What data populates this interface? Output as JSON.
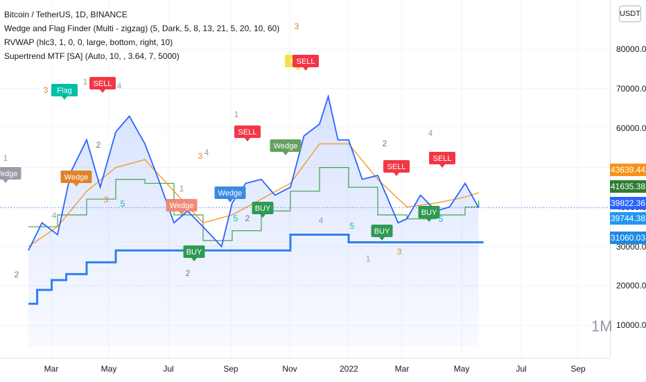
{
  "legend": {
    "symbol": "Bitcoin / TetherUS, 1D, BINANCE",
    "indicator1": "Wedge and Flag Finder (Multi - zigzag) (5, Dark, 5, 8, 13, 21, 5, 20, 10, 60)",
    "indicator2": "RVWAP (hlc3, 1, 0, 0, large, bottom, right, 10)",
    "indicator3": "Supertrend MTF [SA] (Auto, 10, , 3.64, 7, 5000)"
  },
  "currency": "USDT",
  "watermark": "1M",
  "price_tags": [
    {
      "label": "43639.44",
      "color": "#f7931a"
    },
    {
      "label": "41635.38",
      "color": "#2e7d32"
    },
    {
      "label": "39822.36",
      "color": "#2962ff"
    },
    {
      "label": "39744.38",
      "color": "#2196f3"
    },
    {
      "label": "31060.03",
      "color": "#1e88e5"
    }
  ],
  "chart_data": {
    "type": "line",
    "title": "Bitcoin / TetherUS, 1D, BINANCE",
    "ylabel": "USDT",
    "ylim": [
      2000,
      84000
    ],
    "y_ticks": [
      10000,
      20000,
      30000,
      40000,
      50000,
      60000,
      70000,
      80000
    ],
    "y_tick_labels": [
      "10000.00",
      "20000.00",
      "30000.00",
      "40000.00",
      "50000.00",
      "60000.00",
      "70000.00",
      "80000.00"
    ],
    "x_ticks": [
      "Mar",
      "May",
      "Jul",
      "Sep",
      "Nov",
      "2022",
      "Mar",
      "May",
      "Jul",
      "Sep"
    ],
    "last_price": 39822.36,
    "series": [
      {
        "name": "Bitcoin / TetherUS",
        "x": [
          "Jan 1",
          "Jan 15",
          "Feb 1",
          "Feb 15",
          "Mar 1",
          "Mar 15",
          "Apr 1",
          "Apr 15",
          "May 1",
          "May 15",
          "Jun 1",
          "Jun 15",
          "Jul 1",
          "Jul 20",
          "Aug 1",
          "Aug 15",
          "Sep 1",
          "Sep 15",
          "Oct 1",
          "Oct 15",
          "Nov 1",
          "Nov 10",
          "Nov 20",
          "Dec 1",
          "Dec 15",
          "Jan 1",
          "Jan 22",
          "Feb 1",
          "Feb 15",
          "Mar 1",
          "Mar 15",
          "Apr 1",
          "Apr 15"
        ],
        "values": [
          29000,
          36000,
          33000,
          49000,
          57000,
          45000,
          59000,
          63000,
          56000,
          47000,
          36000,
          39000,
          35000,
          30000,
          41000,
          46000,
          47000,
          43000,
          45000,
          58000,
          61000,
          68000,
          57000,
          57000,
          47000,
          48000,
          36000,
          37000,
          43000,
          39000,
          40000,
          46000,
          39800
        ]
      },
      {
        "name": "RVWAP",
        "x": [
          "Jan 1",
          "Feb 1",
          "Mar 1",
          "Apr 1",
          "May 1",
          "Jun 1",
          "Jul 1",
          "Aug 1",
          "Sep 1",
          "Oct 1",
          "Nov 1",
          "Dec 1",
          "Jan 1",
          "Feb 1",
          "Mar 1",
          "Apr 1",
          "Apr 15"
        ],
        "values": [
          30000,
          35000,
          44000,
          50000,
          52000,
          44000,
          36000,
          38000,
          42000,
          46000,
          56000,
          56000,
          47000,
          40000,
          41000,
          42500,
          43639
        ]
      },
      {
        "name": "Supertrend",
        "x": [
          "Jan 1",
          "Feb 1",
          "Mar 1",
          "Apr 1",
          "May 1",
          "Jun 1",
          "Jul 1",
          "Aug 1",
          "Sep 1",
          "Oct 1",
          "Nov 1",
          "Dec 1",
          "Jan 1",
          "Feb 1",
          "Mar 1",
          "Apr 1",
          "Apr 15"
        ],
        "values": [
          35000,
          38000,
          42000,
          47000,
          46000,
          38000,
          31500,
          34000,
          39000,
          44000,
          50000,
          45000,
          38000,
          37000,
          38000,
          40000,
          41635
        ]
      },
      {
        "name": "Support",
        "x": [
          "Jan 1",
          "Jan 10",
          "Jan 25",
          "Feb 10",
          "Mar 1",
          "Apr 1",
          "May 1",
          "Jun 1",
          "Jul 1",
          "Aug 1",
          "Sep 1",
          "Oct 1",
          "Nov 1",
          "Dec 1",
          "Jan 1",
          "Feb 1",
          "Mar 1",
          "Apr 1",
          "Apr 20"
        ],
        "values": [
          15500,
          19000,
          21500,
          23000,
          26000,
          29000,
          29000,
          29000,
          29000,
          29000,
          29000,
          33000,
          33000,
          31060,
          31060,
          31060,
          31060,
          31060,
          31060
        ]
      }
    ],
    "annotations": [
      {
        "text": "Flag",
        "color": "#00bfa5"
      },
      {
        "text": "SELL",
        "color": "#f23645"
      },
      {
        "text": "Wedge",
        "color": "#e0822a"
      },
      {
        "text": "Wedge",
        "color": "#9e9aa8"
      },
      {
        "text": "Wedge",
        "color": "#f08a78"
      },
      {
        "text": "BUY",
        "color": "#2e9a52"
      },
      {
        "text": "Wedge",
        "color": "#3d8be0"
      },
      {
        "text": "BUY",
        "color": "#2e9a52"
      },
      {
        "text": "SELL",
        "color": "#f23645"
      },
      {
        "text": "Flag",
        "color": "#f5e04b"
      },
      {
        "text": "SELL",
        "color": "#f23645"
      },
      {
        "text": "Wedge",
        "color": "#66a05f"
      },
      {
        "text": "SELL",
        "color": "#f23645"
      },
      {
        "text": "BUY",
        "color": "#2e9a52"
      },
      {
        "text": "SELL",
        "color": "#f23645"
      },
      {
        "text": "BUY",
        "color": "#2e9a52"
      }
    ],
    "wave_labels": [
      "1",
      "2",
      "3",
      "4",
      "5",
      "1",
      "2",
      "3",
      "4",
      "5",
      "1",
      "2",
      "3",
      "4",
      "5",
      "1",
      "2",
      "3",
      "4",
      "5",
      "1",
      "2",
      "3",
      "4",
      "5"
    ]
  }
}
